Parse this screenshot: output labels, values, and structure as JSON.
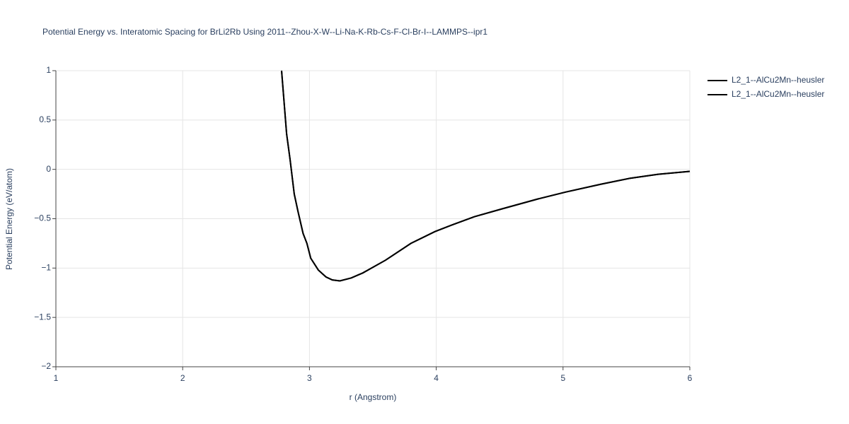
{
  "chart_data": {
    "type": "line",
    "title": "Potential Energy vs. Interatomic Spacing for BrLi2Rb Using 2011--Zhou-X-W--Li-Na-K-Rb-Cs-F-Cl-Br-I--LAMMPS--ipr1",
    "x_label": "r (Angstrom)",
    "y_label": "Potential Energy (eV/atom)",
    "xlim": [
      1,
      6
    ],
    "ylim": [
      -2,
      1
    ],
    "xticks": [
      1,
      2,
      3,
      4,
      5,
      6
    ],
    "yticks": [
      {
        "value": -2,
        "label": "−2"
      },
      {
        "value": -1.5,
        "label": "−1.5"
      },
      {
        "value": -1,
        "label": "−1"
      },
      {
        "value": -0.5,
        "label": "−0.5"
      },
      0,
      0.5,
      1
    ],
    "grid": true,
    "legend": "outside-right",
    "x": [
      2.78,
      2.82,
      2.847,
      2.88,
      2.91,
      2.95,
      2.98,
      3.01,
      3.07,
      3.13,
      3.18,
      3.24,
      3.33,
      3.42,
      3.6,
      3.8,
      3.99,
      4.13,
      4.3,
      4.52,
      4.8,
      5.02,
      5.3,
      5.53,
      5.75,
      6.0
    ],
    "series": [
      {
        "name": "L2_1--AlCu2Mn--heusler",
        "color": "#000000",
        "values": [
          1.0,
          0.36,
          0.1,
          -0.25,
          -0.43,
          -0.65,
          -0.75,
          -0.9,
          -1.02,
          -1.09,
          -1.12,
          -1.13,
          -1.1,
          -1.05,
          -0.92,
          -0.75,
          -0.63,
          -0.56,
          -0.48,
          -0.4,
          -0.3,
          -0.23,
          -0.15,
          -0.09,
          -0.05,
          -0.02
        ]
      },
      {
        "name": "L2_1--AlCu2Mn--heusler",
        "color": "#000000",
        "values": [
          1.0,
          0.36,
          0.1,
          -0.25,
          -0.43,
          -0.65,
          -0.75,
          -0.9,
          -1.02,
          -1.09,
          -1.12,
          -1.13,
          -1.1,
          -1.05,
          -0.92,
          -0.75,
          -0.63,
          -0.56,
          -0.48,
          -0.4,
          -0.3,
          -0.23,
          -0.15,
          -0.09,
          -0.05,
          -0.02
        ]
      }
    ]
  }
}
